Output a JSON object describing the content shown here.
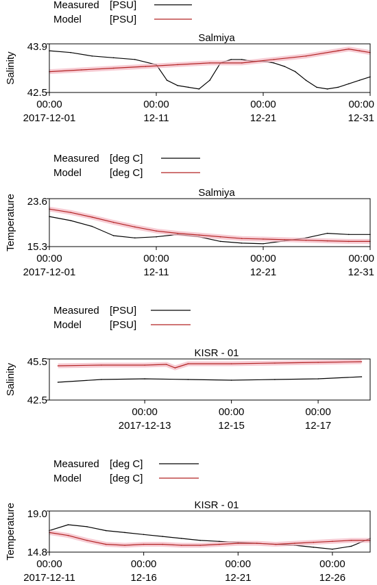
{
  "colors": {
    "measured": "#000000",
    "model": "#b22222",
    "model_band": "#f4b6c2",
    "axis": "#000000",
    "background": "#ffffff"
  },
  "chart_data": [
    {
      "type": "line",
      "title": "Salmiya",
      "ylabel": "Salinity",
      "ylim": [
        42.5,
        43.9
      ],
      "yticks": [
        "43.9",
        "42.5"
      ],
      "xlim": [
        0,
        30
      ],
      "xtick_values": [
        0,
        10,
        20,
        30
      ],
      "xtick_time": [
        "00:00",
        "00:00",
        "00:00",
        "00:00"
      ],
      "xtick_date": [
        "2017-12-01",
        "12-11",
        "12-21",
        "12-31"
      ],
      "legend": [
        {
          "label": "Measured",
          "unit": "[PSU]"
        },
        {
          "label": "Model",
          "unit": "[PSU]"
        }
      ],
      "series": [
        {
          "name": "Measured [PSU]",
          "role": "measured",
          "x": [
            0,
            2,
            4,
            6,
            8,
            10,
            11,
            12,
            13,
            14,
            15,
            16,
            17,
            18,
            19,
            20,
            21,
            22,
            23,
            24,
            25,
            26,
            27,
            28,
            29,
            30
          ],
          "values": [
            43.7,
            43.65,
            43.55,
            43.5,
            43.45,
            43.3,
            42.85,
            42.7,
            42.65,
            42.6,
            42.85,
            43.35,
            43.45,
            43.45,
            43.4,
            43.4,
            43.35,
            43.25,
            43.1,
            42.85,
            42.65,
            42.6,
            42.65,
            42.75,
            42.85,
            42.95
          ]
        },
        {
          "name": "Model [PSU]",
          "role": "model",
          "x": [
            0,
            3,
            6,
            9,
            12,
            15,
            18,
            21,
            24,
            27,
            28,
            29,
            30
          ],
          "values": [
            43.1,
            43.15,
            43.2,
            43.25,
            43.3,
            43.35,
            43.35,
            43.45,
            43.55,
            43.7,
            43.75,
            43.7,
            43.65
          ]
        }
      ]
    },
    {
      "type": "line",
      "title": "Salmiya",
      "ylabel": "Temperature",
      "ylim": [
        15.3,
        23.6
      ],
      "yticks": [
        "23.6",
        "15.3"
      ],
      "xlim": [
        0,
        30
      ],
      "xtick_values": [
        0,
        10,
        20,
        30
      ],
      "xtick_time": [
        "00:00",
        "00:00",
        "00:00",
        "00:00"
      ],
      "xtick_date": [
        "2017-12-01",
        "12-11",
        "12-21",
        "12-31"
      ],
      "legend": [
        {
          "label": "Measured",
          "unit": "[deg C]"
        },
        {
          "label": "Model",
          "unit": "[deg C]"
        }
      ],
      "series": [
        {
          "name": "Measured [deg C]",
          "role": "measured",
          "x": [
            0,
            2,
            4,
            6,
            8,
            10,
            12,
            14,
            16,
            18,
            20,
            22,
            24,
            26,
            28,
            30
          ],
          "values": [
            20.5,
            19.8,
            18.8,
            17.2,
            16.8,
            17.0,
            17.4,
            17.0,
            16.2,
            15.9,
            15.8,
            16.3,
            16.8,
            17.6,
            17.4,
            17.4
          ]
        },
        {
          "name": "Model [deg C]",
          "role": "model",
          "x": [
            0,
            2,
            4,
            6,
            8,
            10,
            12,
            14,
            16,
            18,
            20,
            22,
            24,
            26,
            28,
            30
          ],
          "values": [
            21.8,
            21.2,
            20.4,
            19.5,
            18.7,
            18.0,
            17.6,
            17.3,
            17.0,
            16.7,
            16.6,
            16.5,
            16.4,
            16.3,
            16.2,
            16.2
          ]
        }
      ]
    },
    {
      "type": "line",
      "title": "KISR - 01",
      "ylabel": "Salinity",
      "ylim": [
        42.5,
        45.5
      ],
      "yticks": [
        "45.5",
        "42.5"
      ],
      "xlim": [
        10.8,
        18.2
      ],
      "xtick_values": [
        13,
        15,
        17
      ],
      "xtick_time": [
        "00:00",
        "00:00",
        "00:00"
      ],
      "xtick_date": [
        "2017-12-13",
        "12-15",
        "12-17"
      ],
      "legend": [
        {
          "label": "Measured",
          "unit": "[PSU]"
        },
        {
          "label": "Model",
          "unit": "[PSU]"
        }
      ],
      "series": [
        {
          "name": "Measured [PSU]",
          "role": "measured",
          "x": [
            11,
            12,
            13,
            14,
            15,
            16,
            17,
            18
          ],
          "values": [
            43.8,
            44.0,
            44.05,
            44.0,
            43.95,
            44.0,
            44.05,
            44.2
          ]
        },
        {
          "name": "Model [PSU]",
          "role": "model",
          "x": [
            11,
            12,
            13,
            13.5,
            13.7,
            14,
            15,
            16,
            17,
            18
          ],
          "values": [
            45.0,
            45.05,
            45.05,
            45.1,
            44.85,
            45.15,
            45.15,
            45.2,
            45.25,
            45.3
          ]
        }
      ]
    },
    {
      "type": "line",
      "title": "KISR - 01",
      "ylabel": "Temperature",
      "ylim": [
        14.8,
        19.0
      ],
      "yticks": [
        "19.0",
        "14.8"
      ],
      "xlim": [
        11,
        28
      ],
      "xtick_values": [
        11,
        16,
        21,
        26
      ],
      "xtick_time": [
        "00:00",
        "00:00",
        "00:00",
        "00:00"
      ],
      "xtick_date": [
        "2017-12-11",
        "12-16",
        "12-21",
        "12-26"
      ],
      "legend": [
        {
          "label": "Measured",
          "unit": "[deg C]"
        },
        {
          "label": "Model",
          "unit": "[deg C]"
        }
      ],
      "series": [
        {
          "name": "Measured [deg C]",
          "role": "measured",
          "x": [
            11,
            12,
            13,
            14,
            15,
            16,
            17,
            18,
            19,
            20,
            21,
            22,
            23,
            24,
            25,
            26,
            27,
            28
          ],
          "values": [
            17.0,
            17.6,
            17.4,
            17.0,
            16.8,
            16.6,
            16.4,
            16.2,
            16.0,
            15.9,
            15.8,
            15.7,
            15.6,
            15.5,
            15.3,
            15.1,
            15.4,
            16.2
          ]
        },
        {
          "name": "Model [deg C]",
          "role": "model",
          "x": [
            11,
            12,
            13,
            14,
            15,
            16,
            17,
            18,
            19,
            20,
            21,
            22,
            23,
            24,
            25,
            26,
            27,
            28
          ],
          "values": [
            16.8,
            16.5,
            16.0,
            15.6,
            15.5,
            15.6,
            15.6,
            15.5,
            15.5,
            15.6,
            15.7,
            15.7,
            15.6,
            15.7,
            15.8,
            15.9,
            16.0,
            16.0
          ]
        }
      ]
    }
  ]
}
